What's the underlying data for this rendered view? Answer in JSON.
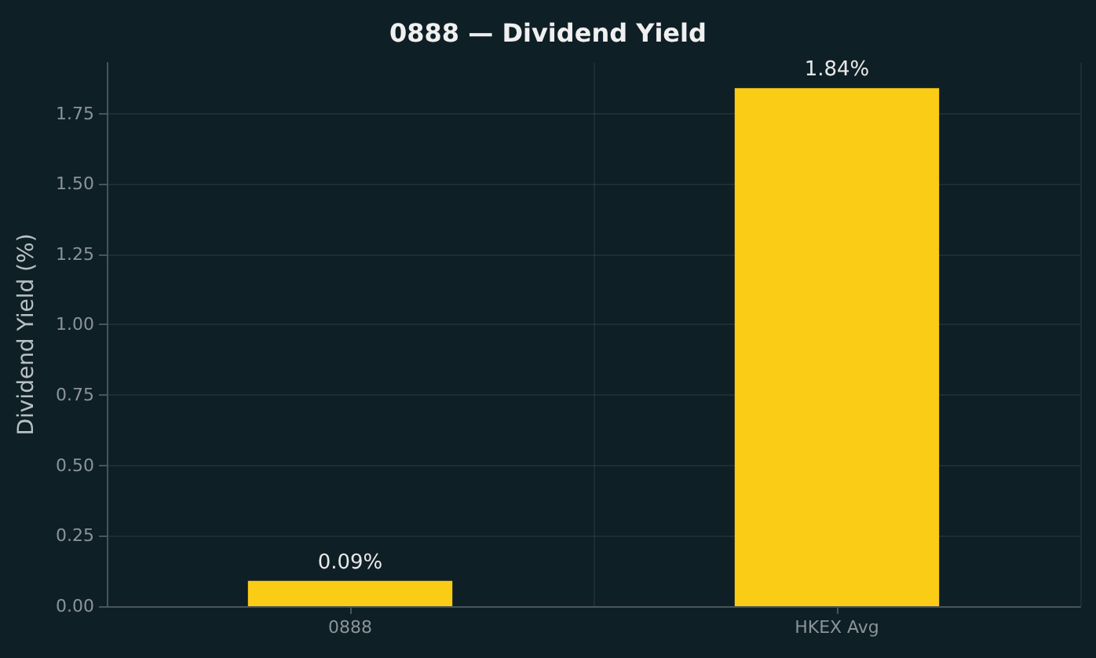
{
  "chart_data": {
    "type": "bar",
    "title": "0888 — Dividend Yield",
    "ylabel": "Dividend Yield (%)",
    "categories": [
      "0888",
      "HKEX Avg"
    ],
    "values": [
      0.09,
      1.84
    ],
    "value_labels": [
      "0.09%",
      "1.84%"
    ],
    "color": "#facc15",
    "ylim": [
      0,
      1.93
    ],
    "yticks": [
      {
        "value": 0,
        "label": "0.00"
      },
      {
        "value": 0.25,
        "label": "0.25"
      },
      {
        "value": 0.5,
        "label": "0.50"
      },
      {
        "value": 0.75,
        "label": "0.75"
      },
      {
        "value": 1,
        "label": "1.00"
      },
      {
        "value": 1.25,
        "label": "1.25"
      },
      {
        "value": 1.5,
        "label": "1.50"
      },
      {
        "value": 1.75,
        "label": "1.75"
      }
    ],
    "grid": true
  }
}
